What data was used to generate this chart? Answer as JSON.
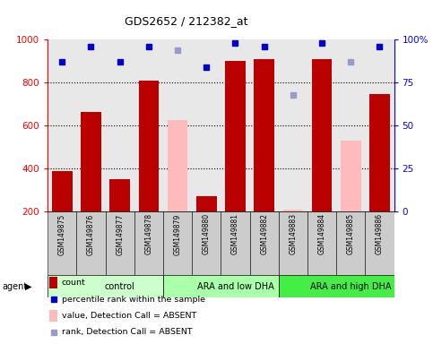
{
  "title": "GDS2652 / 212382_at",
  "samples": [
    "GSM149875",
    "GSM149876",
    "GSM149877",
    "GSM149878",
    "GSM149879",
    "GSM149880",
    "GSM149881",
    "GSM149882",
    "GSM149883",
    "GSM149884",
    "GSM149885",
    "GSM149886"
  ],
  "counts": [
    390,
    665,
    350,
    810,
    null,
    270,
    900,
    910,
    null,
    910,
    null,
    745
  ],
  "counts_absent": [
    null,
    null,
    null,
    null,
    625,
    null,
    null,
    null,
    210,
    null,
    530,
    null
  ],
  "pct_ranks": [
    87,
    96,
    87,
    96,
    null,
    84,
    98,
    96,
    null,
    98,
    null,
    96
  ],
  "pct_ranks_absent": [
    null,
    null,
    null,
    null,
    94,
    null,
    null,
    null,
    68,
    null,
    87,
    null
  ],
  "bar_color_present": "#bb0000",
  "bar_color_absent": "#ffbbbb",
  "dot_color_present": "#0000cc",
  "dot_color_absent": "#9999cc",
  "ylim_left": [
    200,
    1000
  ],
  "ylim_right": [
    0,
    100
  ],
  "yticks_left": [
    200,
    400,
    600,
    800,
    1000
  ],
  "yticks_right": [
    0,
    25,
    50,
    75,
    100
  ],
  "groups": [
    {
      "label": "control",
      "start": 0,
      "end": 4,
      "color": "#ccffcc"
    },
    {
      "label": "ARA and low DHA",
      "start": 4,
      "end": 8,
      "color": "#aaffaa"
    },
    {
      "label": "ARA and high DHA",
      "start": 8,
      "end": 12,
      "color": "#44ee44"
    }
  ],
  "background_color": "#ffffff",
  "plot_bg_color": "#e8e8e8",
  "sample_box_color": "#cccccc"
}
